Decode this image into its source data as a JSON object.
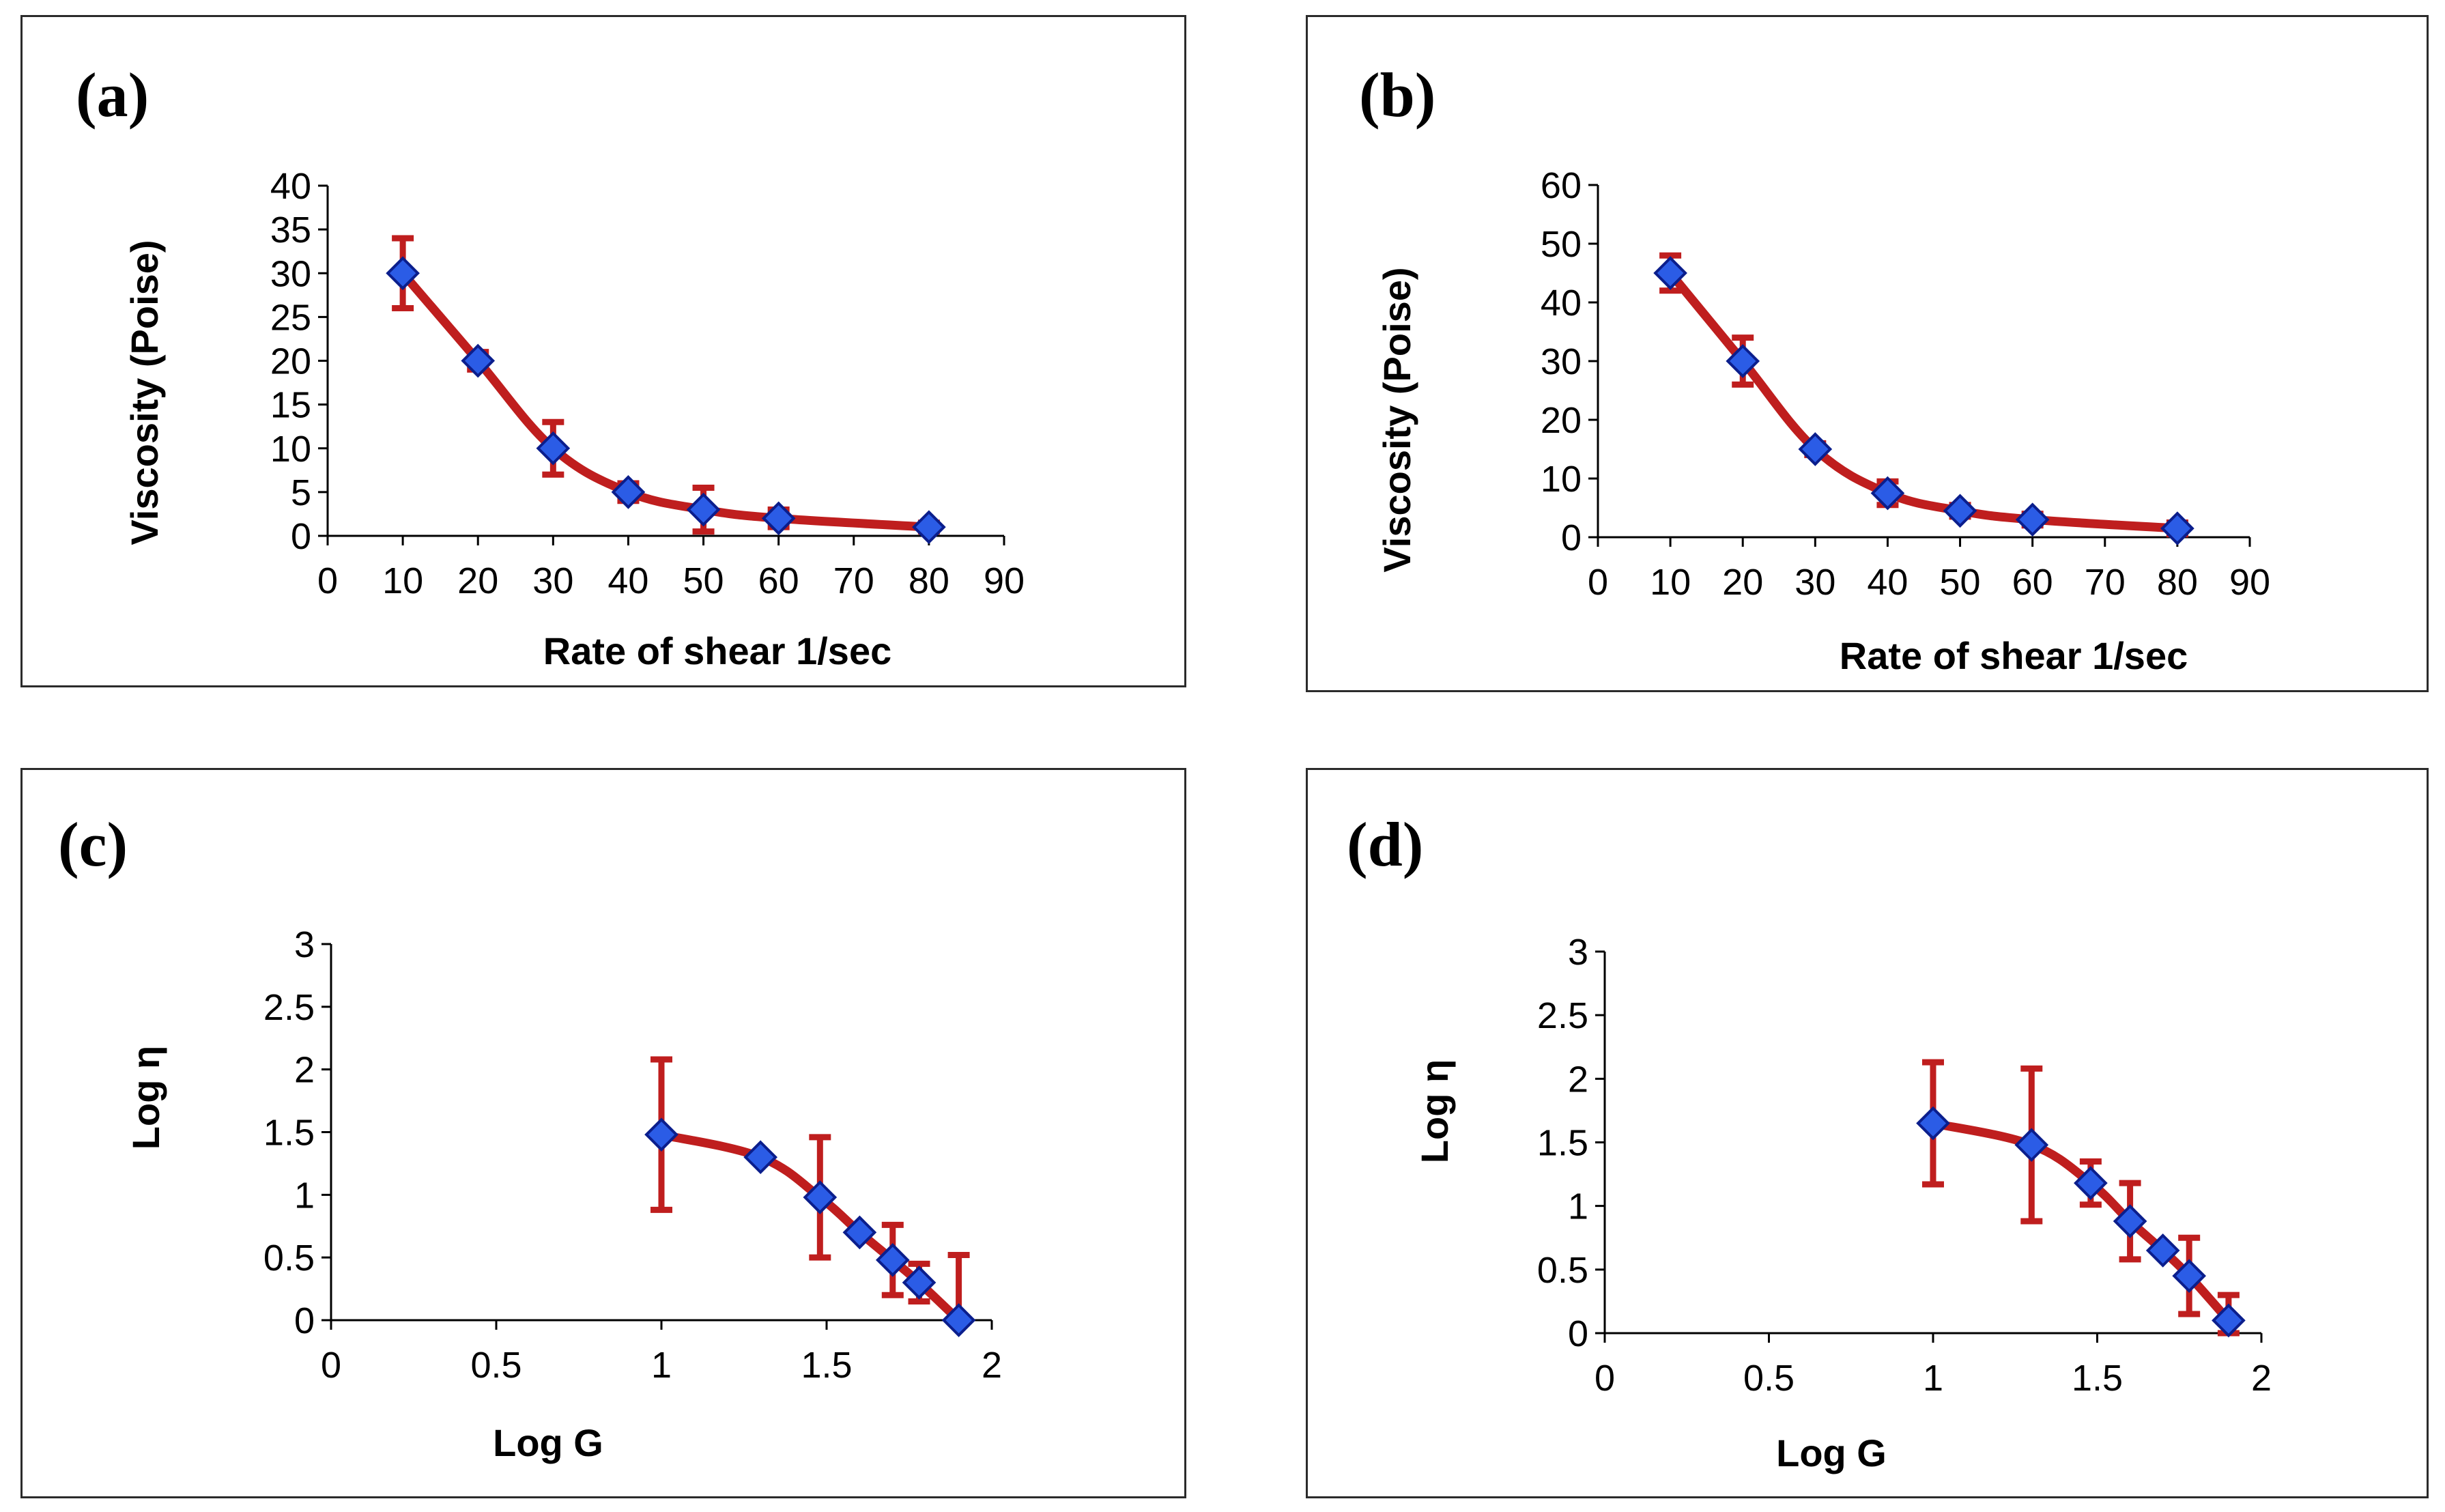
{
  "colors": {
    "line": "#bf1e1e",
    "marker_fill": "#2b5ce6",
    "marker_stroke": "#0b1e8c",
    "axis": "#000000"
  },
  "chart_data": [
    {
      "type": "line",
      "panel_label": "(a)",
      "xlabel": "Rate of shear 1/sec",
      "ylabel": "Viscosity (Poise)",
      "xlim": [
        0,
        90
      ],
      "ylim": [
        0,
        40
      ],
      "x_ticks": [
        "0",
        "10",
        "20",
        "30",
        "40",
        "50",
        "60",
        "70",
        "80",
        "90"
      ],
      "y_ticks": [
        "0",
        "5",
        "10",
        "15",
        "20",
        "25",
        "30",
        "35",
        "40"
      ],
      "series": [
        {
          "name": "viscosity",
          "x": [
            10,
            20,
            30,
            40,
            50,
            60,
            80
          ],
          "y": [
            30,
            20,
            10,
            5,
            3,
            2,
            1
          ],
          "err": [
            4,
            1,
            3,
            1,
            2.5,
            1,
            0.5
          ]
        }
      ]
    },
    {
      "type": "line",
      "panel_label": "(b)",
      "xlabel": "Rate of shear 1/sec",
      "ylabel": "Viscosity (Poise)",
      "xlim": [
        0,
        90
      ],
      "ylim": [
        0,
        60
      ],
      "x_ticks": [
        "0",
        "10",
        "20",
        "30",
        "40",
        "50",
        "60",
        "70",
        "80",
        "90"
      ],
      "y_ticks": [
        "0",
        "10",
        "20",
        "30",
        "40",
        "50",
        "60"
      ],
      "series": [
        {
          "name": "viscosity",
          "x": [
            10,
            20,
            30,
            40,
            50,
            60,
            80
          ],
          "y": [
            45,
            30,
            15,
            7.5,
            4.5,
            3,
            1.5
          ],
          "err": [
            3,
            4,
            1,
            2,
            1,
            1,
            1
          ]
        }
      ]
    },
    {
      "type": "line",
      "panel_label": "(c)",
      "xlabel": "Log G",
      "ylabel": "Log η",
      "xlim": [
        0,
        2
      ],
      "ylim": [
        0,
        3
      ],
      "x_ticks": [
        "0",
        "0.5",
        "1",
        "1.5",
        "2"
      ],
      "y_ticks": [
        "0",
        "0.5",
        "1",
        "1.5",
        "2",
        "2.5",
        "3"
      ],
      "series": [
        {
          "name": "log viscosity",
          "x": [
            1,
            1.3,
            1.48,
            1.6,
            1.7,
            1.78,
            1.9
          ],
          "y": [
            1.48,
            1.3,
            0.98,
            0.7,
            0.48,
            0.3,
            0
          ],
          "err": [
            0.6,
            0,
            0.48,
            0,
            0.28,
            0.15,
            0.52
          ]
        }
      ]
    },
    {
      "type": "line",
      "panel_label": "(d)",
      "xlabel": "Log G",
      "ylabel": "Log η",
      "xlim": [
        0,
        2
      ],
      "ylim": [
        0,
        3
      ],
      "x_ticks": [
        "0",
        "0.5",
        "1",
        "1.5",
        "2"
      ],
      "y_ticks": [
        "0",
        "0.5",
        "1",
        "1.5",
        "2",
        "2.5",
        "3"
      ],
      "series": [
        {
          "name": "log viscosity",
          "x": [
            1,
            1.3,
            1.48,
            1.6,
            1.7,
            1.78,
            1.9
          ],
          "y": [
            1.65,
            1.48,
            1.18,
            0.88,
            0.65,
            0.45,
            0.1
          ],
          "err": [
            0.48,
            0.6,
            0.17,
            0.3,
            0,
            0.3,
            0.2
          ]
        }
      ]
    }
  ]
}
